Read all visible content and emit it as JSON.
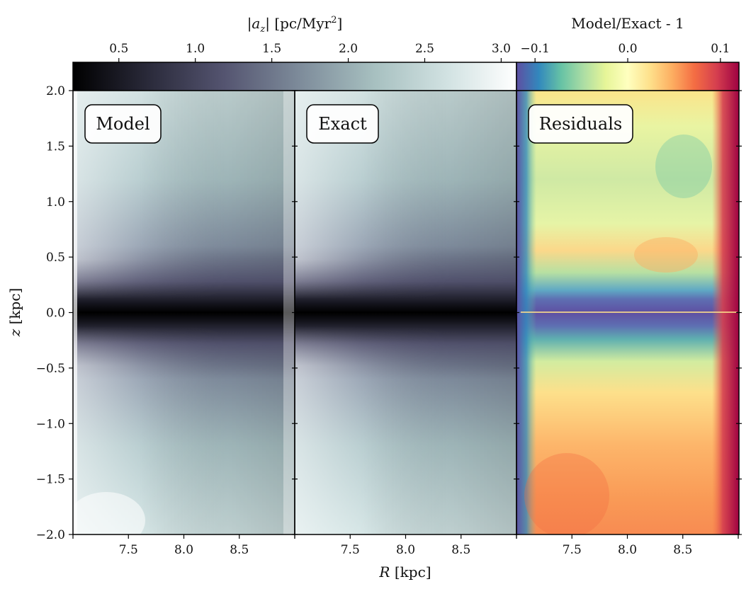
{
  "chart_data": {
    "type": "heatmap",
    "xlabel": "R [kpc]",
    "ylabel": "z [kpc]",
    "xlim": [
      7.0,
      9.0
    ],
    "ylim": [
      -2.0,
      2.0
    ],
    "x_ticks": [
      7.5,
      8.0,
      8.5
    ],
    "x_tick_labels": [
      "7.5",
      "8.0",
      "8.5"
    ],
    "y_ticks": [
      2.0,
      1.5,
      1.0,
      0.5,
      0.0,
      -0.5,
      -1.0,
      -1.5,
      -2.0
    ],
    "y_tick_labels": [
      "2.0",
      "1.5",
      "1.0",
      "0.5",
      "0.0",
      "−0.5",
      "−1.0",
      "−1.5",
      "−2.0"
    ],
    "panels": [
      {
        "label": "Model",
        "quantity": "|a_z|",
        "colormap": "bone"
      },
      {
        "label": "Exact",
        "quantity": "|a_z|",
        "colormap": "bone"
      },
      {
        "label": "Residuals",
        "quantity": "Model/Exact - 1",
        "colormap": "Spectral_r"
      }
    ],
    "colorbars": [
      {
        "label_main": "|a",
        "label_sub": "z",
        "label_tail": "|  [pc/Myr",
        "label_sup": "2",
        "label_close": "]",
        "range": [
          0.2,
          3.1
        ],
        "ticks": [
          0.5,
          1.0,
          1.5,
          2.0,
          2.5,
          3.0
        ],
        "tick_labels": [
          "0.5",
          "1.0",
          "1.5",
          "2.0",
          "2.5",
          "3.0"
        ],
        "colors": [
          "#000000",
          "#2a2a3a",
          "#545470",
          "#7d8b9a",
          "#a7c0c0",
          "#d3e3e3",
          "#ffffff"
        ]
      },
      {
        "label": "Model/Exact - 1",
        "range": [
          -0.12,
          0.12
        ],
        "ticks": [
          -0.1,
          0.0,
          0.1
        ],
        "tick_labels": [
          "−0.1",
          "0.0",
          "0.1"
        ],
        "colors": [
          "#5e4fa2",
          "#3288bd",
          "#66c2a5",
          "#abdda4",
          "#e6f598",
          "#ffffbf",
          "#fee08b",
          "#fdae61",
          "#f46d43",
          "#d53e4f",
          "#9e0142"
        ]
      }
    ],
    "midplane_z": 0.0
  }
}
